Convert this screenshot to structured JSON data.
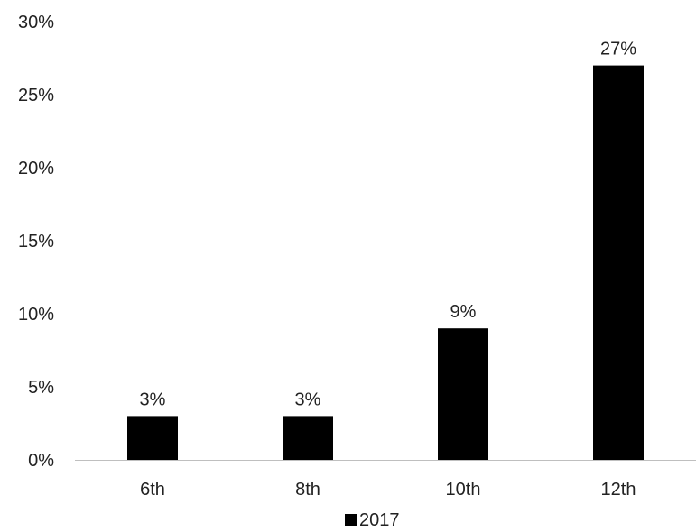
{
  "chart_data": {
    "type": "bar",
    "categories": [
      "6th",
      "8th",
      "10th",
      "12th"
    ],
    "series": [
      {
        "name": "2017",
        "values": [
          3,
          3,
          9,
          27
        ],
        "data_labels": [
          "3%",
          "3%",
          "9%",
          "27%"
        ]
      }
    ],
    "ylim": [
      0,
      30
    ],
    "yticks": [
      0,
      5,
      10,
      15,
      20,
      25,
      30
    ],
    "ytick_labels": [
      "0%",
      "5%",
      "10%",
      "15%",
      "20%",
      "25%",
      "30%"
    ],
    "grid": false,
    "legend_position": "bottom",
    "colors": {
      "bar": "#000000",
      "axis": "#bfbfbf",
      "text": "#222222"
    }
  }
}
